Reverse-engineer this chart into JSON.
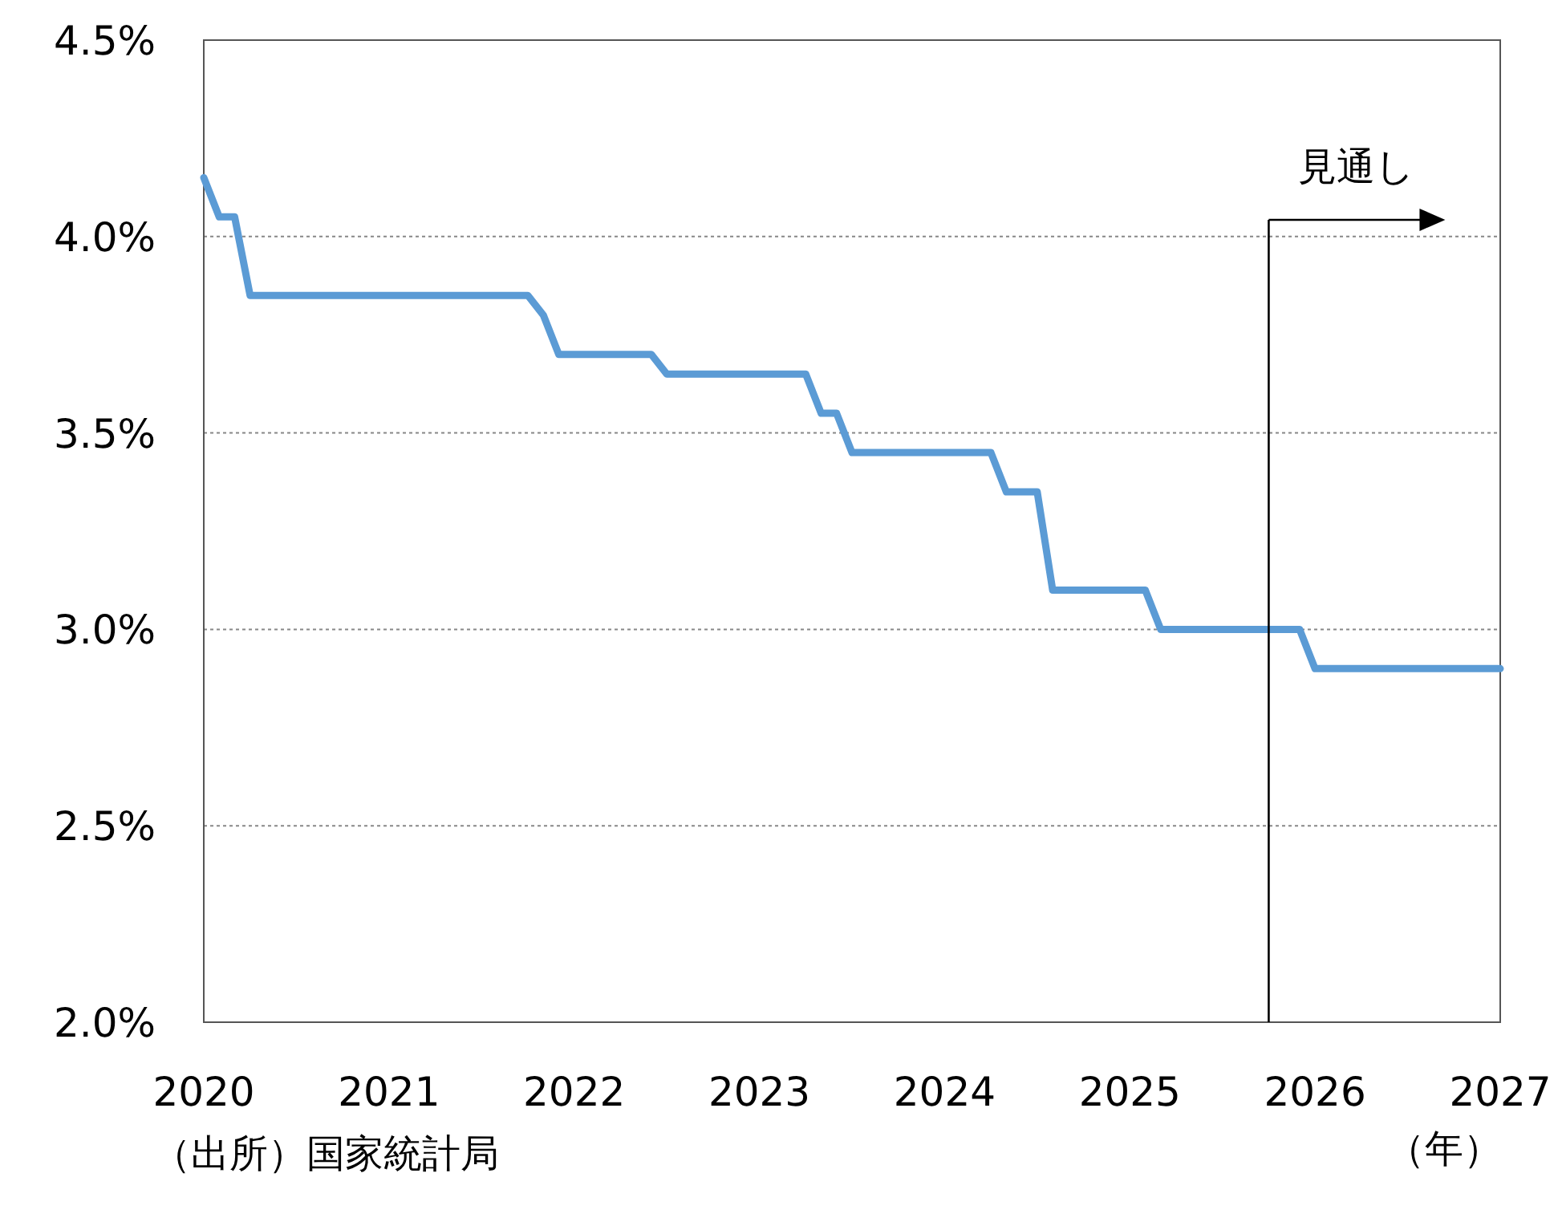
{
  "chart_data": {
    "type": "line",
    "xlabel": "（年）",
    "x": [
      "2020-01",
      "2020-02",
      "2020-03",
      "2020-04",
      "2021-10",
      "2021-11",
      "2021-12",
      "2022-06",
      "2022-07",
      "2023-04",
      "2023-05",
      "2023-06",
      "2023-07",
      "2024-04",
      "2024-05",
      "2024-07",
      "2024-08",
      "2025-02",
      "2025-03",
      "2025-12",
      "2026-01",
      "2027-01"
    ],
    "series": [
      {
        "color": "#5b9bd5",
        "values": [
          4.15,
          4.05,
          4.05,
          3.85,
          3.85,
          3.8,
          3.7,
          3.7,
          3.65,
          3.65,
          3.55,
          3.55,
          3.45,
          3.45,
          3.35,
          3.35,
          3.1,
          3.1,
          3.0,
          3.0,
          2.9,
          2.9
        ]
      }
    ],
    "xlim": [
      "2020-01",
      "2027-01"
    ],
    "xticks": [
      {
        "value": "2020-01",
        "label": "2020"
      },
      {
        "value": "2021-01",
        "label": "2021"
      },
      {
        "value": "2022-01",
        "label": "2022"
      },
      {
        "value": "2023-01",
        "label": "2023"
      },
      {
        "value": "2024-01",
        "label": "2024"
      },
      {
        "value": "2025-01",
        "label": "2025"
      },
      {
        "value": "2026-01",
        "label": "2026"
      },
      {
        "value": "2027-01",
        "label": "2027"
      }
    ],
    "ylim": [
      2.0,
      4.5
    ],
    "yticks": [
      {
        "value": 2.0,
        "label": "2.0%"
      },
      {
        "value": 2.5,
        "label": "2.5%"
      },
      {
        "value": 3.0,
        "label": "3.0%"
      },
      {
        "value": 3.5,
        "label": "3.5%"
      },
      {
        "value": 4.0,
        "label": "4.0%"
      },
      {
        "value": 4.5,
        "label": "4.5%"
      }
    ],
    "grid": "y",
    "line_style": "solid",
    "marker": "none",
    "ref_lines": [
      {
        "axis": "x",
        "value": "2025-10",
        "label": "見通し",
        "color": "#000000"
      }
    ],
    "annotations": [
      "（出所）国家統計局"
    ]
  }
}
